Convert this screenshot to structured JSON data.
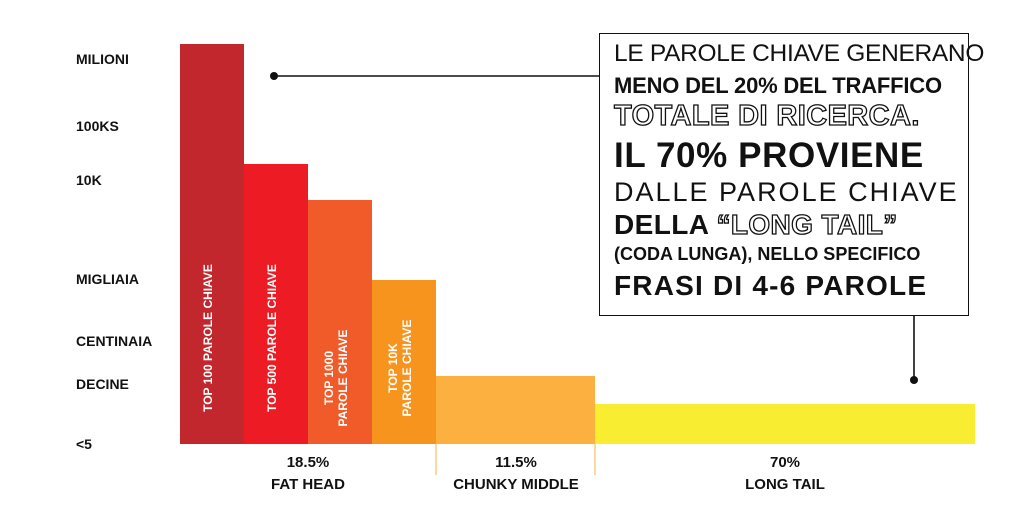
{
  "chart_data": {
    "type": "bar",
    "y_scale_labels": [
      "MILIONI",
      "100KS",
      "10K",
      "MIGLIAIA",
      "CENTINAIA",
      "DECINE",
      "<5"
    ],
    "bars": [
      {
        "label": "TOP 100 PAROLE CHIAVE",
        "level": 1.0,
        "color": "#c1272d"
      },
      {
        "label": "TOP 500 PAROLE CHIAVE",
        "level": 0.7,
        "color": "#ed1c24"
      },
      {
        "label": "TOP 1000 PAROLE CHIAVE",
        "level": 0.61,
        "color": "#f15a29"
      },
      {
        "label": "TOP 10K PAROLE CHIAVE",
        "level": 0.41,
        "color": "#f7941d"
      },
      {
        "label": "",
        "level": 0.17,
        "color": "#fbb040"
      },
      {
        "label": "",
        "level": 0.1,
        "color": "#f9ed32"
      }
    ],
    "segments": [
      {
        "percent": "18.5%",
        "name": "FAT HEAD"
      },
      {
        "percent": "11.5%",
        "name": "CHUNKY MIDDLE"
      },
      {
        "percent": "70%",
        "name": "LONG TAIL"
      }
    ]
  },
  "callout": {
    "line1": "LE PAROLE CHIAVE GENERANO",
    "line2": "MENO DEL 20% DEL TRAFFICO",
    "line3": "TOTALE DI RICERCA.",
    "line4": "IL 70% PROVIENE",
    "line5": "DALLE PAROLE CHIAVE",
    "line6_prefix": "DELLA ",
    "line6_highlight": "“LONG TAIL”",
    "line7": "(CODA LUNGA), NELLO SPECIFICO",
    "line8": "FRASI DI 4-6 PAROLE"
  },
  "colors": {
    "text": "#111111",
    "divider": "#fbb040"
  }
}
